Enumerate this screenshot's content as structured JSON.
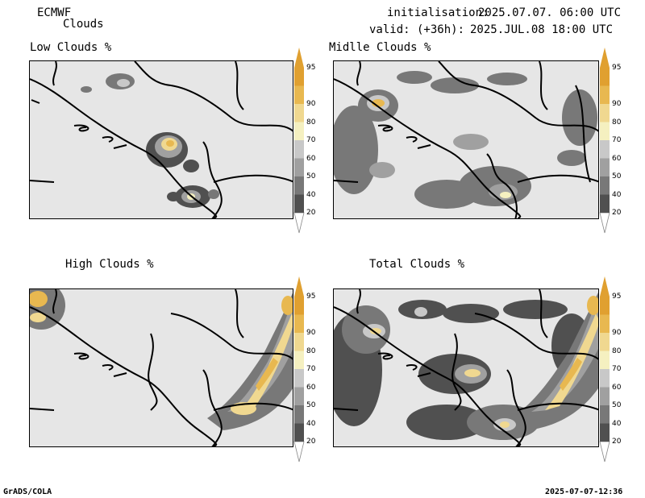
{
  "header": {
    "model": "ECMWF",
    "product": "Clouds",
    "init_label": "initialisation:",
    "init_value": "2025.07.07. 06:00 UTC",
    "valid_label": "valid: (+36h):",
    "valid_value": "2025.JUL.08 18:00 UTC"
  },
  "panels": {
    "low": {
      "title": "Low Clouds %"
    },
    "middle": {
      "title": "Midlle Clouds %"
    },
    "high": {
      "title": "High Clouds %"
    },
    "total": {
      "title": "Total Clouds %"
    }
  },
  "colorbar": {
    "levels": [
      "20",
      "40",
      "50",
      "60",
      "70",
      "80",
      "90",
      "95"
    ],
    "colors": [
      "#505050",
      "#787878",
      "#a0a0a0",
      "#c8c8c8",
      "#f5f0c0",
      "#f0d890",
      "#e8b850",
      "#e0a030"
    ]
  },
  "footer": {
    "left": "GrADS/COLA",
    "right": "2025-07-07-12:36"
  }
}
